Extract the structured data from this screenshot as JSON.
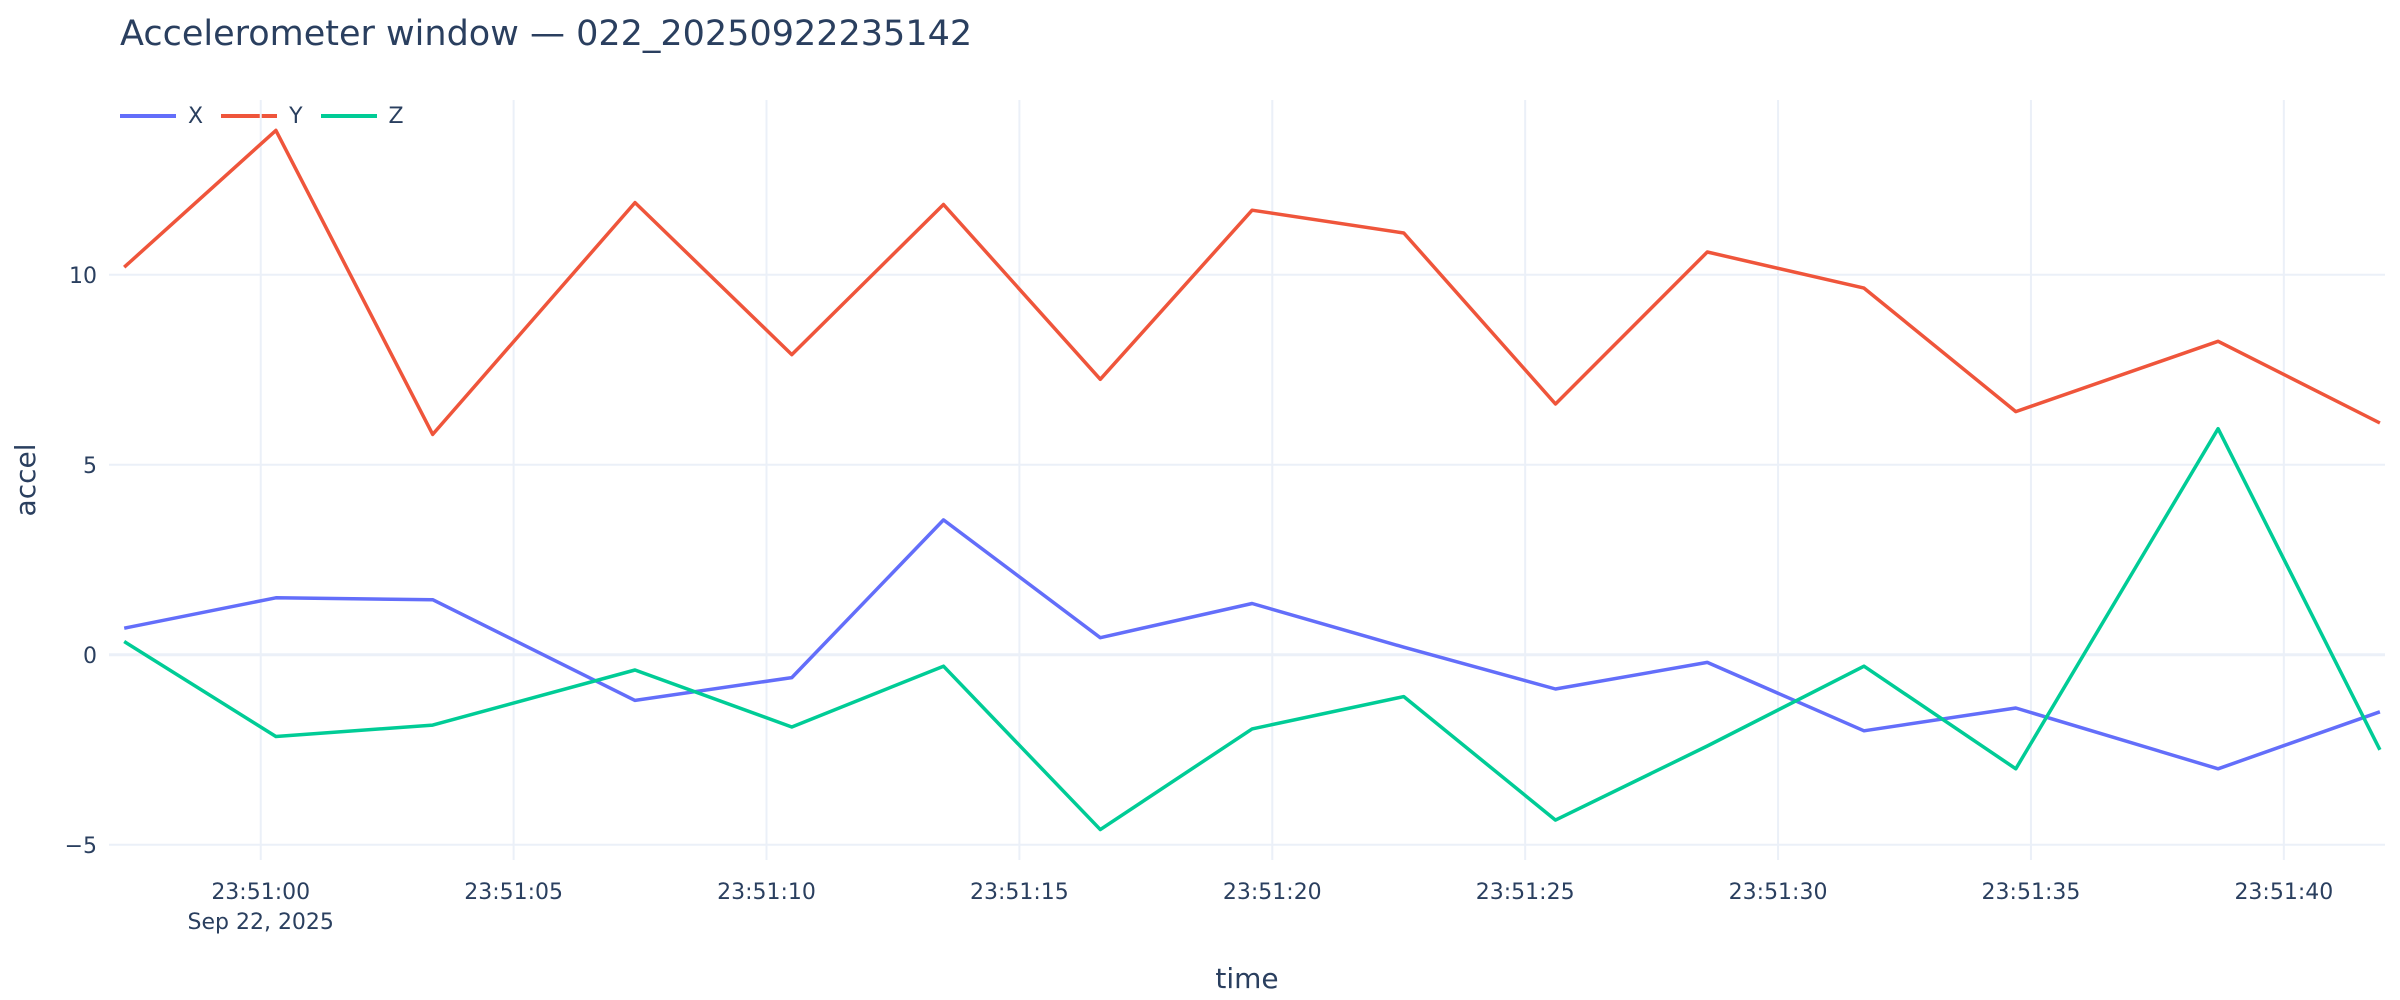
{
  "chart_data": {
    "type": "line",
    "title": "Accelerometer window — 022_20250922235142",
    "xlabel": "time",
    "ylabel": "accel",
    "x_date_label": "Sep 22, 2025",
    "x_start": "2025-09-22 23:50:57",
    "x_end": "2025-09-22 23:51:42",
    "ylim": [
      -5.4,
      14.6
    ],
    "y_ticks": [
      -5,
      0,
      5,
      10
    ],
    "y_tick_labels": [
      "−5",
      "0",
      "5",
      "10"
    ],
    "x_ticks": [
      "23:51:00",
      "23:51:05",
      "23:51:10",
      "23:51:15",
      "23:51:20",
      "23:51:25",
      "23:51:30",
      "23:51:35",
      "23:51:40"
    ],
    "grid": true,
    "legend_position": "top-left",
    "x": [
      "23:50:57.3",
      "23:51:00.3",
      "23:51:03.4",
      "23:51:07.4",
      "23:51:10.5",
      "23:51:13.5",
      "23:51:16.6",
      "23:51:19.6",
      "23:51:22.6",
      "23:51:25.6",
      "23:51:28.6",
      "23:51:31.7",
      "23:51:34.7",
      "23:51:38.7",
      "23:51:41.9"
    ],
    "series": [
      {
        "name": "X",
        "color": "#636efa",
        "values": [
          0.7,
          1.5,
          1.45,
          -1.2,
          -0.6,
          3.55,
          0.45,
          1.35,
          0.2,
          -0.9,
          -0.2,
          -2.0,
          -1.4,
          -3.0,
          -1.5
        ]
      },
      {
        "name": "Y",
        "color": "#ef553b",
        "values": [
          10.2,
          13.8,
          5.8,
          11.9,
          7.9,
          11.85,
          7.25,
          11.7,
          11.1,
          6.6,
          10.6,
          9.65,
          6.4,
          8.25,
          6.1
        ]
      },
      {
        "name": "Z",
        "color": "#00cc96",
        "values": [
          0.35,
          -2.15,
          -1.85,
          -0.4,
          -1.9,
          -0.3,
          -4.6,
          -1.95,
          -1.1,
          -4.35,
          -2.4,
          -0.3,
          -3.0,
          5.95,
          -2.5
        ]
      }
    ]
  }
}
